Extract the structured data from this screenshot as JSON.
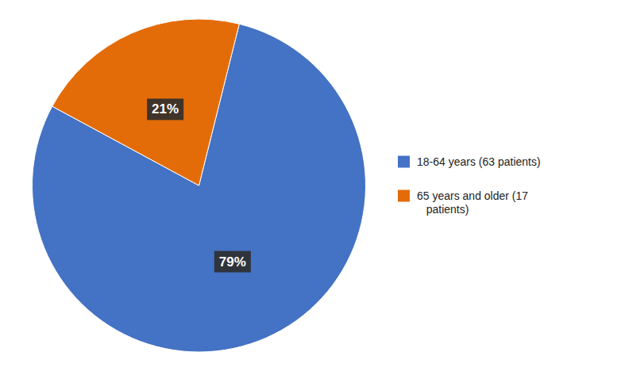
{
  "chart_data": {
    "type": "pie",
    "categories": [
      "18-64 years (63 patients)",
      "65 years and older (17\n   patients)"
    ],
    "values": [
      79,
      21
    ],
    "value_labels": [
      "79%",
      "21%"
    ],
    "colors": [
      "#4472C4",
      "#E36C09"
    ],
    "data_labels": true,
    "legend": "right"
  }
}
